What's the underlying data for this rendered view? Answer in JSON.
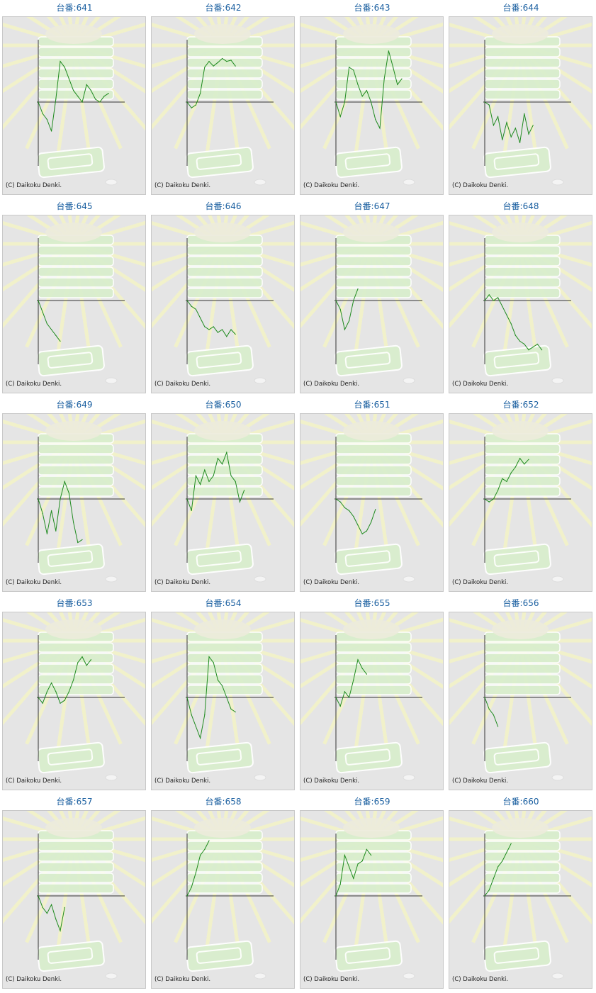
{
  "title_prefix": "台番:",
  "copyright": "(C) Daikoku Denki.",
  "line_color": "#1e8a1e",
  "axis_color": "#333333",
  "chart_data": [
    {
      "label": "641",
      "type": "line",
      "values": [
        0,
        -20,
        -30,
        -50,
        5,
        70,
        60,
        40,
        20,
        10,
        0,
        30,
        20,
        5,
        0,
        10,
        15
      ]
    },
    {
      "label": "642",
      "type": "line",
      "values": [
        0,
        -10,
        -5,
        15,
        60,
        70,
        62,
        68,
        75,
        70,
        72,
        62
      ]
    },
    {
      "label": "643",
      "type": "line",
      "values": [
        0,
        -25,
        0,
        60,
        55,
        30,
        10,
        20,
        0,
        -30,
        -45,
        40,
        88,
        60,
        30,
        40
      ]
    },
    {
      "label": "644",
      "type": "line",
      "values": [
        0,
        -5,
        -40,
        -25,
        -65,
        -35,
        -60,
        -45,
        -70,
        -20,
        -55,
        -40
      ]
    },
    {
      "label": "645",
      "type": "line",
      "values": [
        0,
        -20,
        -40,
        -50,
        -60,
        -70
      ]
    },
    {
      "label": "646",
      "type": "line",
      "values": [
        0,
        -10,
        -15,
        -30,
        -45,
        -50,
        -45,
        -55,
        -50,
        -62,
        -50,
        -58
      ]
    },
    {
      "label": "647",
      "type": "line",
      "values": [
        0,
        -15,
        -50,
        -35,
        0,
        20
      ]
    },
    {
      "label": "648",
      "type": "line",
      "values": [
        0,
        10,
        0,
        5,
        -10,
        -25,
        -40,
        -60,
        -70,
        -75,
        -85,
        -80,
        -75,
        -85
      ]
    },
    {
      "label": "649",
      "type": "line",
      "values": [
        0,
        -25,
        -60,
        -20,
        -55,
        0,
        30,
        10,
        -40,
        -75,
        -70
      ]
    },
    {
      "label": "650",
      "type": "line",
      "values": [
        0,
        -20,
        40,
        25,
        50,
        30,
        40,
        70,
        60,
        80,
        40,
        30,
        -5,
        15
      ]
    },
    {
      "label": "651",
      "type": "line",
      "values": [
        0,
        -5,
        -15,
        -20,
        -30,
        -45,
        -60,
        -55,
        -40,
        -18
      ]
    },
    {
      "label": "652",
      "type": "line",
      "values": [
        0,
        -5,
        0,
        15,
        35,
        30,
        45,
        55,
        70,
        60,
        68
      ]
    },
    {
      "label": "653",
      "type": "line",
      "values": [
        0,
        -10,
        10,
        25,
        10,
        -10,
        -5,
        10,
        30,
        60,
        70,
        55,
        65
      ]
    },
    {
      "label": "654",
      "type": "line",
      "values": [
        0,
        -30,
        -50,
        -70,
        -30,
        70,
        60,
        30,
        20,
        0,
        -20,
        -25
      ]
    },
    {
      "label": "655",
      "type": "line",
      "values": [
        0,
        -15,
        10,
        0,
        30,
        65,
        50,
        40
      ]
    },
    {
      "label": "656",
      "type": "line",
      "values": [
        0,
        -20,
        -30,
        -50
      ]
    },
    {
      "label": "657",
      "type": "line",
      "values": [
        0,
        -20,
        -30,
        -15,
        -40,
        -60,
        -20
      ]
    },
    {
      "label": "658",
      "type": "line",
      "values": [
        0,
        15,
        40,
        70,
        80,
        95
      ]
    },
    {
      "label": "659",
      "type": "line",
      "values": [
        0,
        20,
        70,
        50,
        30,
        55,
        60,
        80,
        70
      ]
    },
    {
      "label": "660",
      "type": "line",
      "values": [
        0,
        10,
        30,
        50,
        60,
        75,
        90
      ]
    }
  ]
}
